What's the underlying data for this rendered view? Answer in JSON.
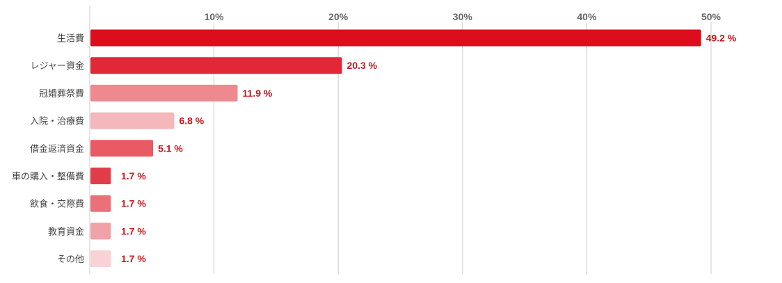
{
  "chart_data": {
    "type": "bar",
    "orientation": "horizontal",
    "categories": [
      "生活費",
      "レジャー資金",
      "冠婚葬祭費",
      "入院・治療費",
      "借金返済資金",
      "車の購入・整備費",
      "飲食・交際費",
      "教育資金",
      "その他"
    ],
    "values": [
      49.2,
      20.3,
      11.9,
      6.8,
      5.1,
      1.7,
      1.7,
      1.7,
      1.7
    ],
    "value_labels": [
      "49.2 %",
      "20.3 %",
      "11.9 %",
      "6.8 %",
      "5.1 %",
      "1.7 %",
      "1.7 %",
      "1.7 %",
      "1.7 %"
    ],
    "bar_colors": [
      "#dc0d1c",
      "#e22736",
      "#ee8990",
      "#f4b7bb",
      "#e85a64",
      "#e13d49",
      "#ea7079",
      "#f0a2a8",
      "#f8d2d5"
    ],
    "xlim": [
      0,
      55
    ],
    "xticks": [
      10,
      20,
      30,
      40,
      50
    ],
    "xtick_labels": [
      "10%",
      "20%",
      "30%",
      "40%",
      "50%"
    ],
    "title": "",
    "xlabel": "",
    "ylabel": "",
    "grid": true,
    "legend": "none",
    "value_label_color": "#c8161d"
  }
}
